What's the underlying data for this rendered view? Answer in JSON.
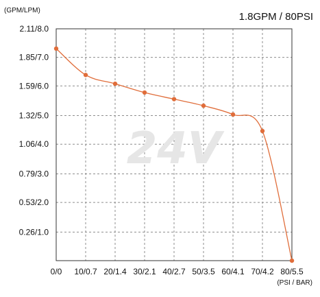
{
  "chart_data": {
    "type": "line",
    "title": "1.8GPM / 80PSI",
    "y_unit_label": "(GPM/LPM)",
    "x_unit_label": "(PSI / BAR)",
    "watermark": "24V",
    "x_tick_labels": [
      "0/0",
      "10/0.7",
      "20/1.4",
      "30/2.1",
      "40/2.7",
      "50/3.5",
      "60/4.1",
      "70/4.2",
      "80/5.5"
    ],
    "y_tick_labels": [
      "0.26/1.0",
      "0.53/2.0",
      "0.79/3.0",
      "1.06/4.0",
      "1.32/5.0",
      "1.59/6.0",
      "1.85/7.0",
      "2.11/8.0"
    ],
    "y_tick_values": [
      0.26,
      0.53,
      0.79,
      1.06,
      1.32,
      1.59,
      1.85,
      2.11
    ],
    "xlim": [
      0,
      80
    ],
    "ylim": [
      0,
      2.11
    ],
    "grid": true,
    "series": [
      {
        "x": [
          0,
          10,
          20,
          30,
          40,
          50,
          60,
          70,
          80
        ],
        "y": [
          1.93,
          1.69,
          1.61,
          1.53,
          1.47,
          1.41,
          1.33,
          1.18,
          0.0
        ]
      }
    ],
    "colors": {
      "line": "#e06d3a",
      "marker": "#e06d3a",
      "grid": "#8c8c8c",
      "axis": "#333333"
    }
  }
}
